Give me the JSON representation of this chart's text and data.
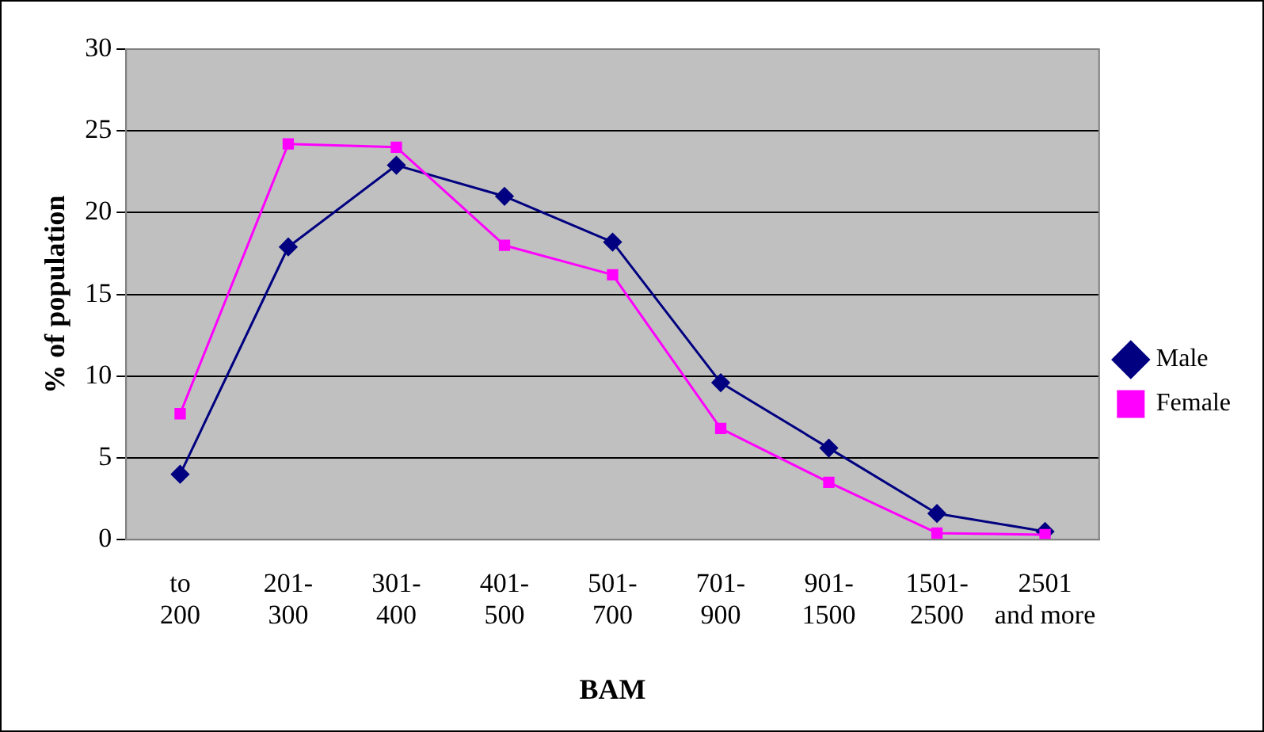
{
  "chart_data": {
    "type": "line",
    "xlabel": "BAM",
    "ylabel": "% of population",
    "categories": [
      "to 200",
      "201-300",
      "301-400",
      "401-500",
      "501-700",
      "701-900",
      "901-1500",
      "1501-2500",
      "2501 and more"
    ],
    "series": [
      {
        "name": "Male",
        "color": "#000080",
        "marker": "diamond",
        "values": [
          4,
          17.9,
          22.9,
          21,
          18.2,
          9.6,
          5.6,
          1.6,
          0.5
        ]
      },
      {
        "name": "Female",
        "color": "#ff00ff",
        "marker": "square",
        "values": [
          7.7,
          24.2,
          24,
          18,
          16.2,
          6.8,
          3.5,
          0.4,
          0.3
        ]
      }
    ],
    "ylim": [
      0,
      30
    ],
    "yticks": [
      0,
      5,
      10,
      15,
      20,
      25,
      30
    ],
    "grid": "y",
    "legend": "right"
  }
}
